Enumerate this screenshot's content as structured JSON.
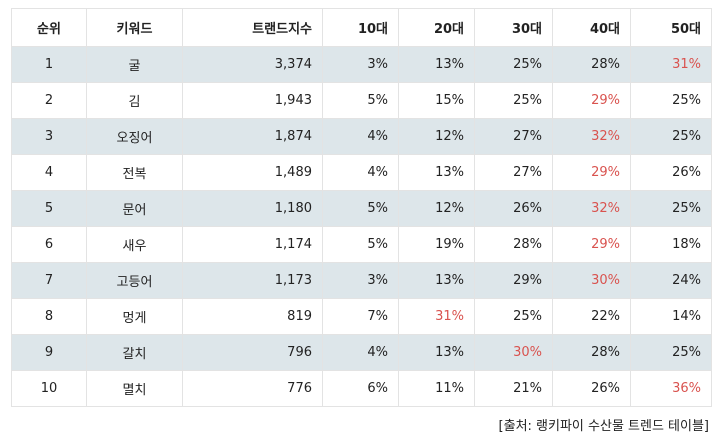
{
  "headers": [
    "순위",
    "키워드",
    "트랜드지수",
    "10대",
    "20대",
    "30대",
    "40대",
    "50대"
  ],
  "rows": [
    {
      "rank": "1",
      "keyword": "굴",
      "index": "3,374",
      "t10": "3%",
      "t20": "13%",
      "t30": "25%",
      "t40": "28%",
      "t50": "31%",
      "highlight": "t50"
    },
    {
      "rank": "2",
      "keyword": "김",
      "index": "1,943",
      "t10": "5%",
      "t20": "15%",
      "t30": "25%",
      "t40": "29%",
      "t50": "25%",
      "highlight": "t40"
    },
    {
      "rank": "3",
      "keyword": "오징어",
      "index": "1,874",
      "t10": "4%",
      "t20": "12%",
      "t30": "27%",
      "t40": "32%",
      "t50": "25%",
      "highlight": "t40"
    },
    {
      "rank": "4",
      "keyword": "전복",
      "index": "1,489",
      "t10": "4%",
      "t20": "13%",
      "t30": "27%",
      "t40": "29%",
      "t50": "26%",
      "highlight": "t40"
    },
    {
      "rank": "5",
      "keyword": "문어",
      "index": "1,180",
      "t10": "5%",
      "t20": "12%",
      "t30": "26%",
      "t40": "32%",
      "t50": "25%",
      "highlight": "t40"
    },
    {
      "rank": "6",
      "keyword": "새우",
      "index": "1,174",
      "t10": "5%",
      "t20": "19%",
      "t30": "28%",
      "t40": "29%",
      "t50": "18%",
      "highlight": "t40"
    },
    {
      "rank": "7",
      "keyword": "고등어",
      "index": "1,173",
      "t10": "3%",
      "t20": "13%",
      "t30": "29%",
      "t40": "30%",
      "t50": "24%",
      "highlight": "t40"
    },
    {
      "rank": "8",
      "keyword": "멍게",
      "index": "819",
      "t10": "7%",
      "t20": "31%",
      "t30": "25%",
      "t40": "22%",
      "t50": "14%",
      "highlight": "t20"
    },
    {
      "rank": "9",
      "keyword": "갈치",
      "index": "796",
      "t10": "4%",
      "t20": "13%",
      "t30": "30%",
      "t40": "28%",
      "t50": "25%",
      "highlight": "t30"
    },
    {
      "rank": "10",
      "keyword": "멸치",
      "index": "776",
      "t10": "6%",
      "t20": "11%",
      "t30": "21%",
      "t40": "26%",
      "t50": "36%",
      "highlight": "t50"
    }
  ],
  "source": "[출처: 랭키파이 수산물 트렌드 테이블]",
  "colors": {
    "highlight": "#d9534f",
    "shaded_row": "#dde6ea"
  }
}
